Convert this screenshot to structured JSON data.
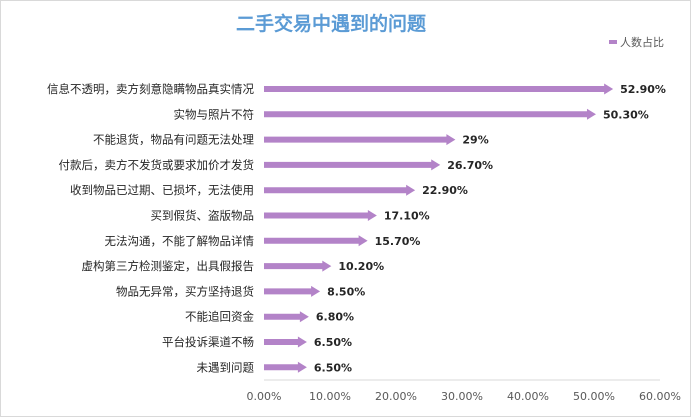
{
  "chart_data": {
    "type": "bar",
    "orientation": "horizontal",
    "title": "二手交易中遇到的问题",
    "categories": [
      "信息不透明，卖方刻意隐瞒物品真实情况",
      "实物与照片不符",
      "不能退货，物品有问题无法处理",
      "付款后，卖方不发货或要求加价才发货",
      "收到物品已过期、已损坏，无法使用",
      "买到假货、盗版物品",
      "无法沟通，不能了解物品详情",
      "虚构第三方检测鉴定，出具假报告",
      "物品无异常，买方坚持退货",
      "不能追回资金",
      "平台投诉渠道不畅",
      "未遇到问题"
    ],
    "series": [
      {
        "name": "人数占比",
        "values": [
          52.9,
          50.3,
          29,
          26.7,
          22.9,
          17.1,
          15.7,
          10.2,
          8.5,
          6.8,
          6.5,
          6.5
        ],
        "labels": [
          "52.90%",
          "50.30%",
          "29%",
          "26.70%",
          "22.90%",
          "17.10%",
          "15.70%",
          "10.20%",
          "8.50%",
          "6.80%",
          "6.50%",
          "6.50%"
        ]
      }
    ],
    "xlim": [
      0,
      60
    ],
    "x_ticks": [
      "0.00%",
      "10.00%",
      "20.00%",
      "30.00%",
      "40.00%",
      "50.00%",
      "60.00%"
    ],
    "grid": false,
    "legend_position": "top-right",
    "colors": {
      "bar": "#b383c8",
      "title": "#5b9bd5"
    }
  }
}
